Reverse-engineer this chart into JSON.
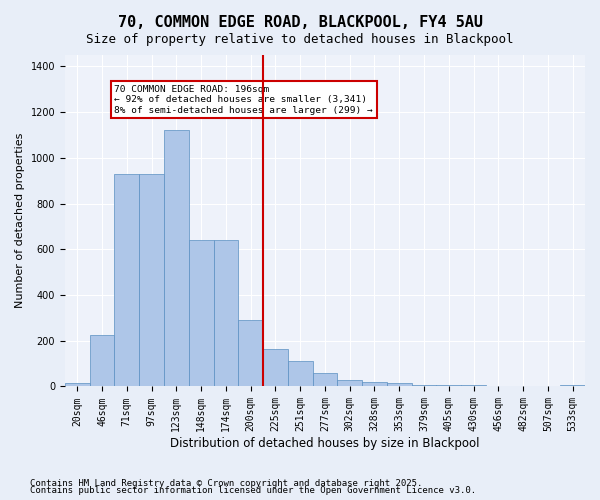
{
  "title": "70, COMMON EDGE ROAD, BLACKPOOL, FY4 5AU",
  "subtitle": "Size of property relative to detached houses in Blackpool",
  "xlabel": "Distribution of detached houses by size in Blackpool",
  "ylabel": "Number of detached properties",
  "footnote1": "Contains HM Land Registry data © Crown copyright and database right 2025.",
  "footnote2": "Contains public sector information licensed under the Open Government Licence v3.0.",
  "categories": [
    "20sqm",
    "46sqm",
    "71sqm",
    "97sqm",
    "123sqm",
    "148sqm",
    "174sqm",
    "200sqm",
    "225sqm",
    "251sqm",
    "277sqm",
    "302sqm",
    "328sqm",
    "353sqm",
    "379sqm",
    "405sqm",
    "430sqm",
    "456sqm",
    "482sqm",
    "507sqm",
    "533sqm"
  ],
  "bar_heights": [
    15,
    225,
    930,
    930,
    1120,
    640,
    640,
    290,
    165,
    110,
    60,
    30,
    20,
    15,
    5,
    5,
    5,
    0,
    0,
    0,
    5
  ],
  "bar_color": "#aec6e8",
  "bar_edge_color": "#5a8fc2",
  "vline_x": 7.5,
  "vline_color": "#cc0000",
  "annotation_text": "70 COMMON EDGE ROAD: 196sqm\n← 92% of detached houses are smaller (3,341)\n8% of semi-detached houses are larger (299) →",
  "annotation_box_color": "#cc0000",
  "ylim": [
    0,
    1450
  ],
  "yticks": [
    0,
    200,
    400,
    600,
    800,
    1000,
    1200,
    1400
  ],
  "background_color": "#e8eef8",
  "plot_bg_color": "#eef2fa",
  "title_fontsize": 11,
  "subtitle_fontsize": 9,
  "axis_label_fontsize": 8,
  "tick_fontsize": 7,
  "footnote_fontsize": 6.5
}
